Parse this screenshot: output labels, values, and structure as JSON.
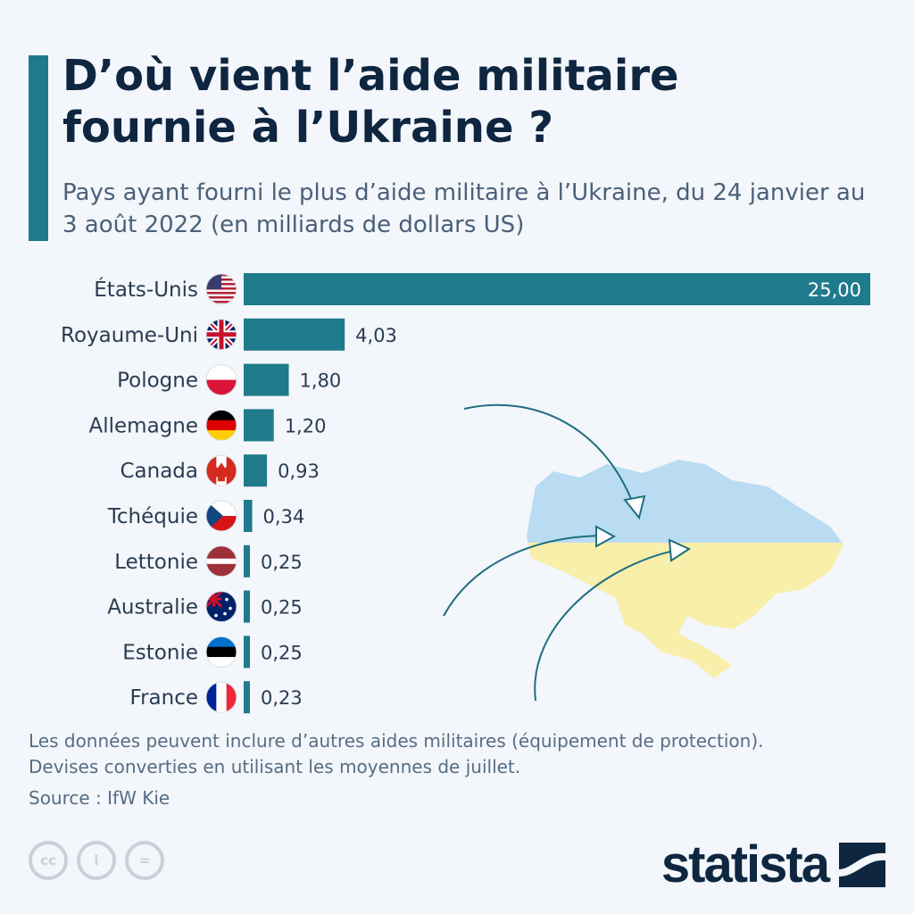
{
  "header": {
    "title": "D’où vient l’aide militaire fournie à l’Ukraine ?",
    "subtitle": "Pays ayant fourni le plus d’aide militaire à l’Ukraine, du 24 janvier au 3 août 2022 (en milliards de dollars US)"
  },
  "chart_data": {
    "type": "bar",
    "orientation": "horizontal",
    "categories": [
      "États-Unis",
      "Royaume-Uni",
      "Pologne",
      "Allemagne",
      "Canada",
      "Tchéquie",
      "Lettonie",
      "Australie",
      "Estonie",
      "France"
    ],
    "values": [
      25.0,
      4.03,
      1.8,
      1.2,
      0.93,
      0.34,
      0.25,
      0.25,
      0.25,
      0.23
    ],
    "value_labels": [
      "25,00",
      "4,03",
      "1,80",
      "1,20",
      "0,93",
      "0,34",
      "0,25",
      "0,25",
      "0,25",
      "0,23"
    ],
    "flags": [
      "us-flag",
      "uk-flag",
      "poland-flag",
      "germany-flag",
      "canada-flag",
      "czechia-flag",
      "latvia-flag",
      "australia-flag",
      "estonia-flag",
      "france-flag"
    ],
    "xlim": [
      0,
      25
    ],
    "grid": false,
    "bar_color": "#1f7a8c"
  },
  "footer": {
    "notes": "Les données peuvent inclure d’autres aides militaires (équipement de protection). Devises converties en utilisant les moyennes de juillet.",
    "source": "Source : IfW Kie",
    "license_icons": [
      "cc-icon",
      "by-icon",
      "nd-icon"
    ],
    "logo": "statista"
  },
  "colors": {
    "accent": "#1f7a8c",
    "title": "#0f2640",
    "map_blue": "#b9dcf2",
    "map_yellow": "#f7efaa"
  }
}
